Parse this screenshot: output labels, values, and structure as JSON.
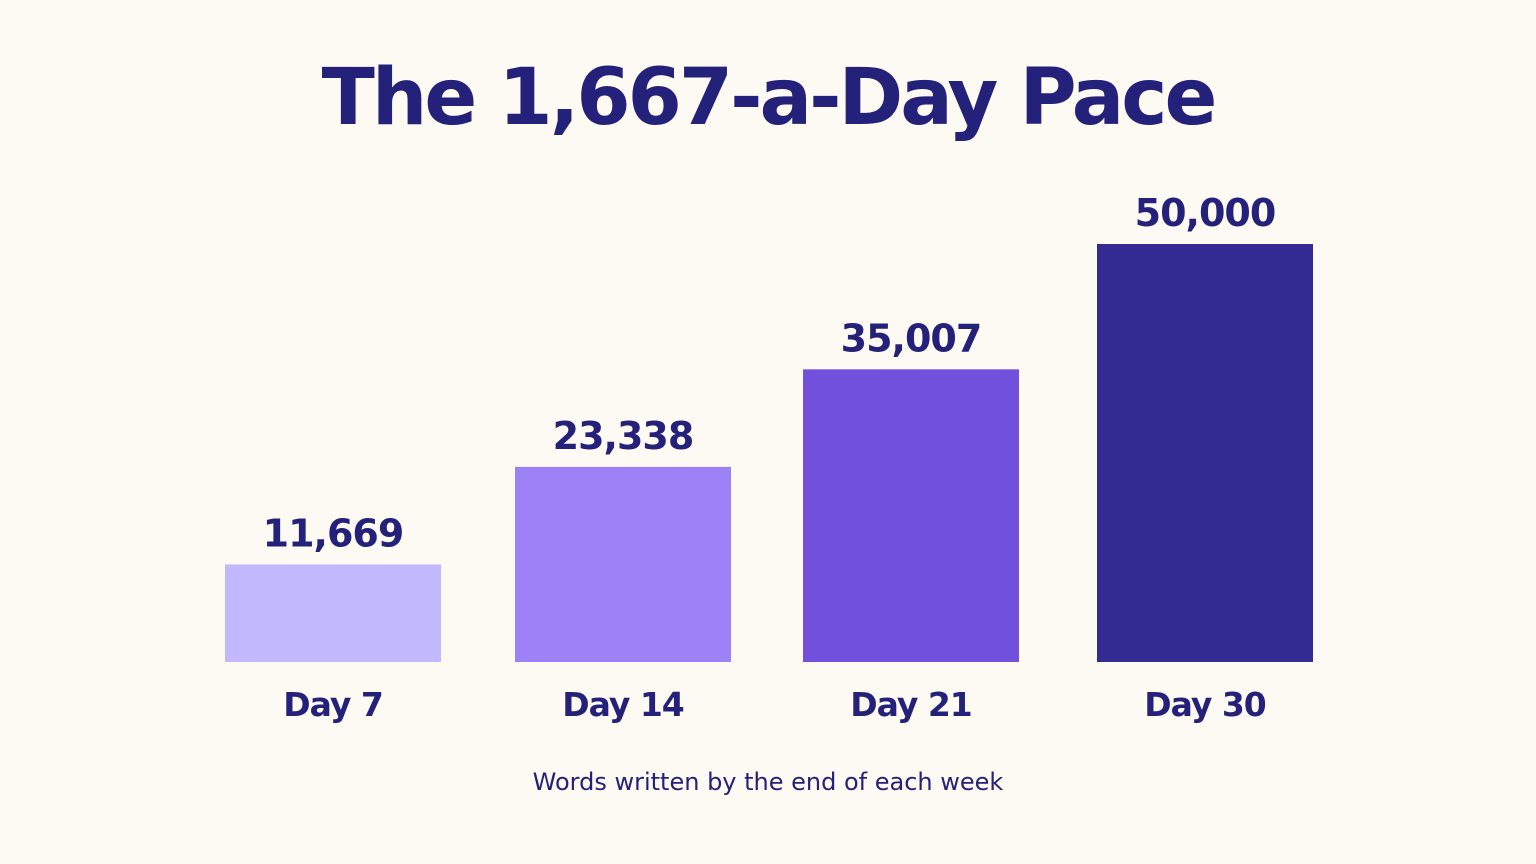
{
  "chart_data": {
    "type": "bar",
    "title": "The 1,667-a-Day Pace",
    "caption": "Words written by the end of each week",
    "categories": [
      "Day 7",
      "Day 14",
      "Day 21",
      "Day 30"
    ],
    "values": [
      11669,
      23338,
      35007,
      50000
    ],
    "value_labels": [
      "11,669",
      "23,338",
      "35,007",
      "50,000"
    ],
    "bar_colors": [
      "#c2b8fd",
      "#9d82f7",
      "#7150dd",
      "#332b91"
    ],
    "ylim": [
      0,
      50000
    ],
    "grid": false,
    "legend": "none"
  },
  "colors": {
    "background": "#fdf9f3",
    "text": "#24217a"
  }
}
